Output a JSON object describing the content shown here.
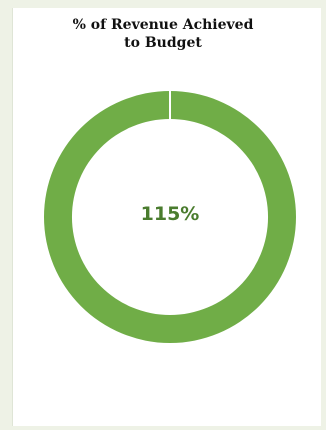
{
  "chart_data": {
    "type": "pie",
    "title_lines": [
      "% of Revenue Achieved",
      "to Budget"
    ],
    "center_label": "115%",
    "values": [
      115
    ],
    "colors": {
      "ring": "#70ad47",
      "center_text": "#4a7c2e",
      "separator": "#ffffff"
    }
  }
}
